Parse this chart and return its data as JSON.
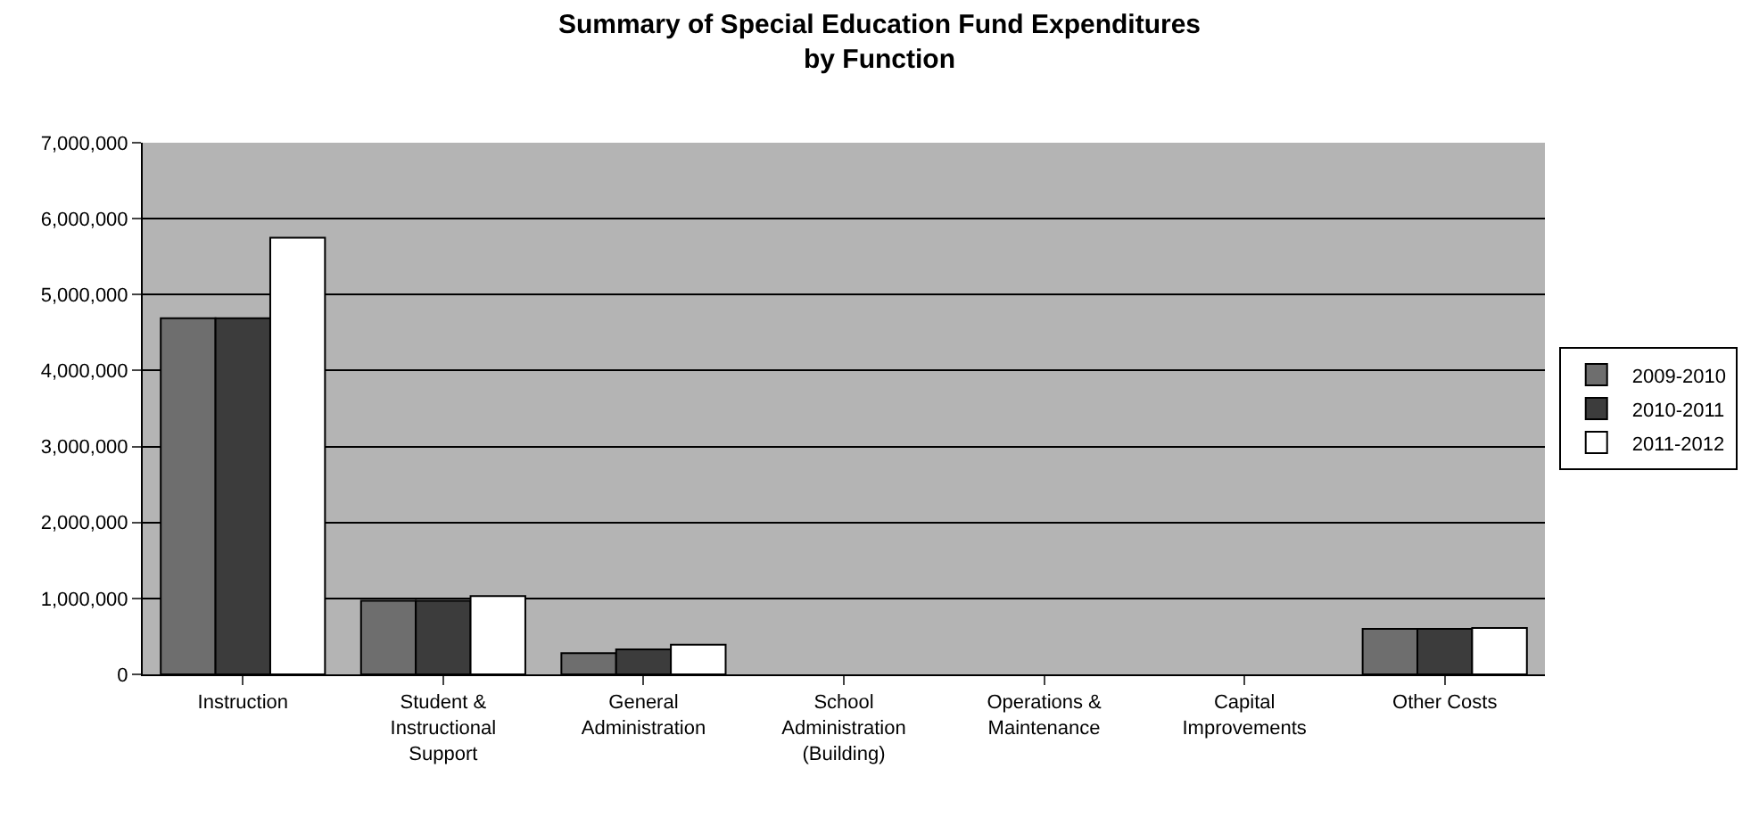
{
  "chart_data": {
    "type": "bar",
    "title": "Summary of Special Education Fund Expenditures\nby Function",
    "categories": [
      "Instruction",
      "Student &\nInstructional\nSupport",
      "General\nAdministration",
      "School\nAdministration\n(Building)",
      "Operations &\nMaintenance",
      "Capital\nImprovements",
      "Other Costs"
    ],
    "series": [
      {
        "name": "2009-2010",
        "color": "#6e6e6e",
        "values": [
          4690000,
          970000,
          280000,
          0,
          0,
          0,
          600000
        ]
      },
      {
        "name": "2010-2011",
        "color": "#3c3c3c",
        "values": [
          4690000,
          970000,
          330000,
          0,
          0,
          0,
          600000
        ]
      },
      {
        "name": "2011-2012",
        "color": "#ffffff",
        "values": [
          5750000,
          1030000,
          390000,
          0,
          0,
          0,
          610000
        ]
      }
    ],
    "ylim": [
      0,
      7000000
    ],
    "yticks": [
      {
        "value": 0,
        "label": "0"
      },
      {
        "value": 1000000,
        "label": "1,000,000"
      },
      {
        "value": 2000000,
        "label": "2,000,000"
      },
      {
        "value": 3000000,
        "label": "3,000,000"
      },
      {
        "value": 4000000,
        "label": "4,000,000"
      },
      {
        "value": 5000000,
        "label": "5,000,000"
      },
      {
        "value": 6000000,
        "label": "6,000,000"
      },
      {
        "value": 7000000,
        "label": "7,000,000"
      }
    ],
    "grid": "y",
    "legend": "right"
  }
}
